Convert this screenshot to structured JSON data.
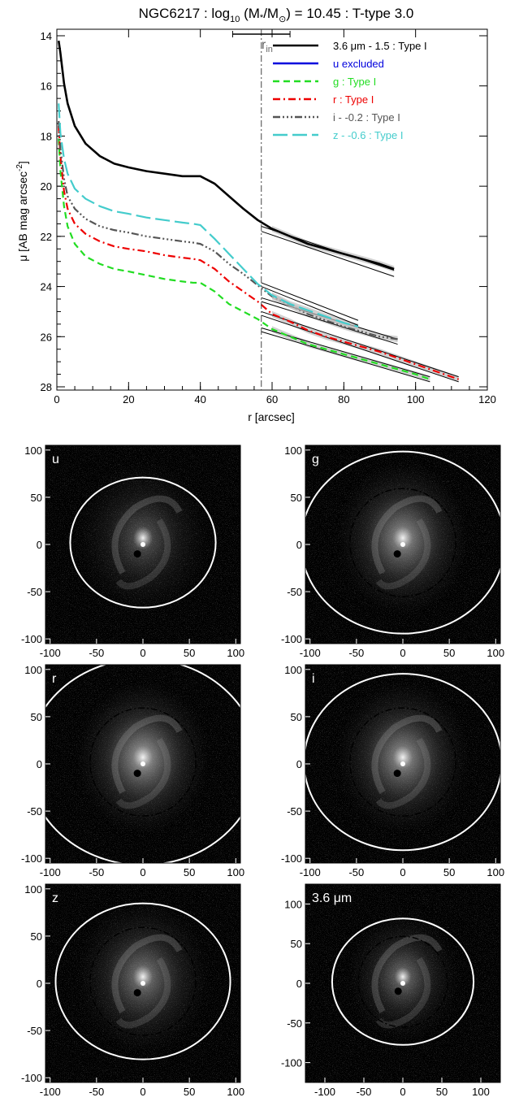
{
  "chart_data": [
    {
      "type": "line",
      "title_parts": {
        "pre": "NGC6217 : log",
        "sub": "10",
        "mid": " (M",
        "star": "*",
        "slash": "/M",
        "sun": "⊙",
        "post": ") = 10.45 : T-type 3.0"
      },
      "xlabel": "r [arcsec]",
      "ylabel_parts": {
        "pre": "μ [AB mag arcsec",
        "sup": "-2",
        "post": "]"
      },
      "xlim": [
        0,
        120
      ],
      "ylim": [
        28,
        14
      ],
      "xticks": [
        0,
        20,
        40,
        60,
        80,
        100,
        120
      ],
      "yticks": [
        14,
        16,
        18,
        20,
        22,
        24,
        26,
        28
      ],
      "break_marker": {
        "label": "r",
        "sub": "in",
        "r": 57,
        "range": [
          49,
          65
        ]
      },
      "legend": [
        {
          "text": "3.6 μm - 1.5 : Type I",
          "color": "#000000",
          "dash": "none"
        },
        {
          "text": "u excluded",
          "color": "#0000dd",
          "dash": "none"
        },
        {
          "text": "g : Type I",
          "color": "#22dd22",
          "dash": "8,5"
        },
        {
          "text": "r : Type I",
          "color": "#ee0000",
          "dash": "9,4,2,4"
        },
        {
          "text": "i - -0.2 : Type I",
          "color": "#555555",
          "dash": "9,3,2,3,2,3,2,3"
        },
        {
          "text": "z - -0.6 : Type I",
          "color": "#44cccc",
          "dash": "18,6"
        }
      ],
      "series": [
        {
          "name": "3.6 μm - 1.5 : Type I",
          "color": "#000000",
          "dash": "none",
          "width": 2.6,
          "x": [
            0.5,
            1,
            2,
            3,
            5,
            8,
            12,
            16,
            20,
            25,
            30,
            35,
            38,
            40,
            44,
            48,
            52,
            56,
            60,
            65,
            70,
            75,
            80,
            85,
            90,
            94
          ],
          "y": [
            14.2,
            14.7,
            15.9,
            16.7,
            17.6,
            18.3,
            18.8,
            19.1,
            19.25,
            19.4,
            19.5,
            19.6,
            19.6,
            19.6,
            19.9,
            20.4,
            20.9,
            21.35,
            21.7,
            22.0,
            22.3,
            22.5,
            22.7,
            22.9,
            23.1,
            23.3
          ],
          "fit": {
            "x": [
              57,
              94
            ],
            "y1": [
              21.6,
              23.35
            ],
            "y2": [
              21.8,
              23.6
            ]
          }
        },
        {
          "name": "g : Type I",
          "color": "#22dd22",
          "dash": "8,5",
          "width": 2.2,
          "x": [
            0.5,
            1,
            2,
            3,
            5,
            8,
            12,
            16,
            20,
            25,
            30,
            35,
            38,
            40,
            44,
            48,
            52,
            56,
            60,
            65,
            70,
            75,
            80,
            85,
            90,
            95,
            100,
            104
          ],
          "y": [
            18.1,
            19.4,
            20.8,
            21.6,
            22.3,
            22.8,
            23.1,
            23.3,
            23.4,
            23.55,
            23.7,
            23.8,
            23.85,
            23.85,
            24.2,
            24.7,
            25.0,
            25.3,
            25.7,
            26.0,
            26.3,
            26.5,
            26.7,
            26.9,
            27.1,
            27.3,
            27.5,
            27.7
          ],
          "fit": {
            "x": [
              57,
              104
            ],
            "y1": [
              25.65,
              27.6
            ],
            "y2": [
              25.8,
              27.8
            ]
          }
        },
        {
          "name": "r : Type I",
          "color": "#ee0000",
          "dash": "9,4,2,4",
          "width": 2.2,
          "x": [
            0.5,
            1,
            2,
            3,
            5,
            8,
            12,
            16,
            20,
            25,
            30,
            35,
            38,
            40,
            44,
            48,
            52,
            56,
            60,
            65,
            70,
            75,
            80,
            85,
            90,
            95,
            100,
            105,
            110,
            112
          ],
          "y": [
            17.6,
            18.8,
            20.2,
            20.9,
            21.5,
            21.9,
            22.2,
            22.4,
            22.5,
            22.6,
            22.75,
            22.85,
            22.9,
            22.95,
            23.3,
            23.8,
            24.2,
            24.6,
            25.1,
            25.4,
            25.75,
            26.0,
            26.2,
            26.4,
            26.6,
            26.85,
            27.1,
            27.35,
            27.6,
            27.7
          ],
          "fit": {
            "x": [
              57,
              112
            ],
            "y1": [
              25.0,
              27.6
            ],
            "y2": [
              25.15,
              27.8
            ]
          }
        },
        {
          "name": "i - -0.2 : Type I",
          "color": "#555555",
          "dash": "9,3,2,3,2,3,2,3",
          "width": 2.2,
          "x": [
            0.5,
            1,
            2,
            3,
            5,
            8,
            12,
            16,
            20,
            25,
            30,
            35,
            38,
            40,
            44,
            48,
            52,
            56,
            60,
            65,
            70,
            75,
            80,
            85,
            90,
            95
          ],
          "y": [
            17.4,
            18.5,
            19.7,
            20.4,
            20.9,
            21.3,
            21.6,
            21.75,
            21.85,
            22.0,
            22.1,
            22.2,
            22.25,
            22.3,
            22.6,
            23.1,
            23.5,
            23.95,
            24.4,
            24.75,
            25.1,
            25.35,
            25.6,
            25.8,
            26.0,
            26.1
          ],
          "fit": {
            "x": [
              57,
              95
            ],
            "y1": [
              24.45,
              26.1
            ],
            "y2": [
              24.6,
              26.3
            ]
          }
        },
        {
          "name": "z - -0.6 : Type I",
          "color": "#44cccc",
          "dash": "18,6",
          "width": 2.2,
          "x": [
            0.5,
            1,
            2,
            3,
            5,
            8,
            12,
            16,
            20,
            25,
            30,
            35,
            38,
            40,
            44,
            48,
            52,
            56,
            60,
            65,
            70,
            75,
            80,
            84
          ],
          "y": [
            16.7,
            17.9,
            18.9,
            19.5,
            20.1,
            20.5,
            20.8,
            21.0,
            21.1,
            21.25,
            21.35,
            21.45,
            21.5,
            21.55,
            22.1,
            22.7,
            23.3,
            23.9,
            24.35,
            24.7,
            24.95,
            25.2,
            25.45,
            25.6
          ],
          "fit": {
            "x": [
              57,
              84
            ],
            "y1": [
              23.85,
              25.35
            ],
            "y2": [
              24.0,
              25.55
            ]
          }
        }
      ]
    },
    {
      "type": "image-grid",
      "panels": [
        {
          "label": "u",
          "xticks": [
            -100,
            -50,
            0,
            50,
            100
          ],
          "yticks": [
            100,
            50,
            0,
            -50,
            -100
          ],
          "xlim": [
            -105,
            105
          ],
          "ylim": [
            -105,
            105
          ],
          "outer_r": 70,
          "inner_r": 0,
          "brightness": 0.35
        },
        {
          "label": "g",
          "xticks": [
            -100,
            -50,
            0,
            50,
            100
          ],
          "yticks": [
            100,
            50,
            0,
            -50,
            -100
          ],
          "xlim": [
            -105,
            105
          ],
          "ylim": [
            -105,
            105
          ],
          "outer_r": 98,
          "inner_r": 57,
          "brightness": 0.6
        },
        {
          "label": "r",
          "xticks": [
            -100,
            -50,
            0,
            50,
            100
          ],
          "yticks": [
            100,
            50,
            0,
            -50,
            -100
          ],
          "xlim": [
            -105,
            105
          ],
          "ylim": [
            -105,
            105
          ],
          "outer_r": 111,
          "inner_r": 57,
          "brightness": 0.65
        },
        {
          "label": "i",
          "xticks": [
            -100,
            -50,
            0,
            50,
            100
          ],
          "yticks": [
            100,
            50,
            0,
            -50,
            -100
          ],
          "xlim": [
            -105,
            105
          ],
          "ylim": [
            -105,
            105
          ],
          "outer_r": 95,
          "inner_r": 57,
          "brightness": 0.6
        },
        {
          "label": "z",
          "xticks": [
            -100,
            -50,
            0,
            50,
            100
          ],
          "yticks": [
            100,
            50,
            0,
            -50,
            -100
          ],
          "xlim": [
            -105,
            105
          ],
          "ylim": [
            -105,
            105
          ],
          "outer_r": 84,
          "inner_r": 57,
          "brightness": 0.5
        },
        {
          "label": "3.6 μm",
          "xticks": [
            -100,
            -50,
            0,
            50,
            100
          ],
          "yticks": [
            100,
            50,
            0,
            -50,
            -100
          ],
          "xlim": [
            -125,
            125
          ],
          "ylim": [
            -125,
            125
          ],
          "outer_r": 81,
          "inner_r": 57,
          "brightness": 0.45
        }
      ]
    }
  ]
}
